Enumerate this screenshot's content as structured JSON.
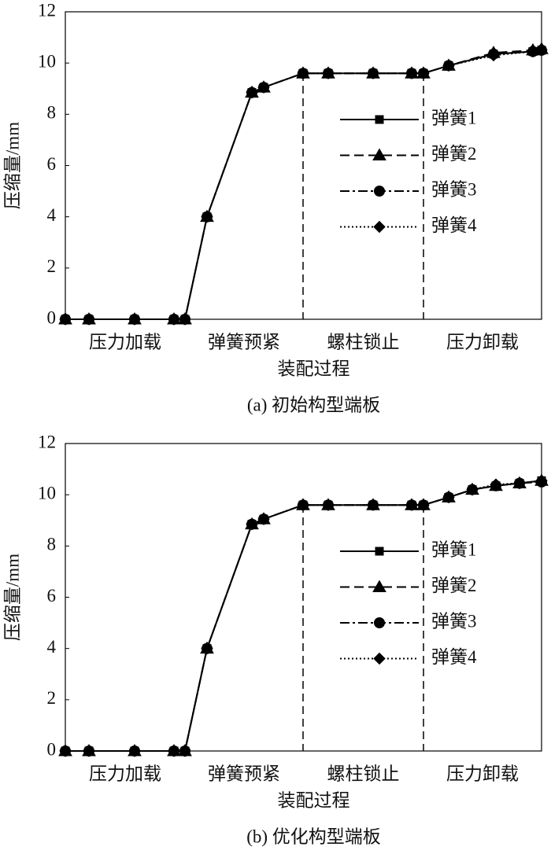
{
  "chart_data": [
    {
      "type": "line",
      "title": "(a)  初始构型端板",
      "xlabel": "装配过程",
      "ylabel": "压缩量/mm",
      "stages": [
        "压力加载",
        "弹簧预紧",
        "螺柱锁止",
        "压力卸载"
      ],
      "dividers": [
        12.08,
        18.2
      ],
      "xlim": [
        0,
        24.2
      ],
      "ylim": [
        0,
        12
      ],
      "yticks": [
        0,
        2,
        4,
        6,
        8,
        10,
        12
      ],
      "x": [
        0,
        1.2,
        3.52,
        5.52,
        6.08,
        7.2,
        9.48,
        10.08,
        12.08,
        13.36,
        15.64,
        17.6,
        18.2,
        19.48,
        21.76,
        23.76,
        24.2
      ],
      "series": [
        {
          "name": "弹簧1",
          "color": "#000000",
          "marker": "square",
          "dash": "solid",
          "values": [
            0,
            0,
            0,
            0,
            0,
            4,
            8.85,
            9.05,
            9.6,
            9.6,
            9.6,
            9.6,
            9.6,
            9.9,
            10.35,
            10.45,
            10.5
          ]
        },
        {
          "name": "弹簧2",
          "color": "#000000",
          "marker": "triangle",
          "dash": "dashed",
          "values": [
            0,
            0,
            0,
            0,
            0,
            4,
            8.85,
            9.05,
            9.6,
            9.6,
            9.6,
            9.6,
            9.6,
            9.9,
            10.4,
            10.5,
            10.55
          ]
        },
        {
          "name": "弹簧3",
          "color": "#000000",
          "marker": "circle",
          "dash": "dashdot",
          "values": [
            0,
            0,
            0,
            0,
            0,
            4,
            8.85,
            9.05,
            9.6,
            9.6,
            9.6,
            9.6,
            9.6,
            9.9,
            10.35,
            10.45,
            10.5
          ]
        },
        {
          "name": "弹簧4",
          "color": "#000000",
          "marker": "diamond",
          "dash": "dotted",
          "values": [
            0,
            0,
            0,
            0,
            0,
            4,
            8.85,
            9.05,
            9.6,
            9.6,
            9.6,
            9.6,
            9.6,
            9.9,
            10.3,
            10.45,
            10.5
          ]
        }
      ]
    },
    {
      "type": "line",
      "title": "(b)  优化构型端板",
      "xlabel": "装配过程",
      "ylabel": "压缩量/mm",
      "stages": [
        "压力加载",
        "弹簧预紧",
        "螺柱锁止",
        "压力卸载"
      ],
      "dividers": [
        12.08,
        18.2
      ],
      "xlim": [
        0,
        24.2
      ],
      "ylim": [
        0,
        12
      ],
      "yticks": [
        0,
        2,
        4,
        6,
        8,
        10,
        12
      ],
      "x": [
        0,
        1.2,
        3.52,
        5.52,
        6.08,
        7.2,
        9.48,
        10.08,
        12.08,
        13.36,
        15.64,
        17.6,
        18.2,
        19.48,
        20.68,
        21.88,
        23.08,
        24.2
      ],
      "series": [
        {
          "name": "弹簧1",
          "color": "#000000",
          "marker": "square",
          "dash": "solid",
          "values": [
            0,
            0,
            0,
            0,
            0,
            4,
            8.85,
            9.05,
            9.6,
            9.6,
            9.6,
            9.6,
            9.6,
            9.9,
            10.2,
            10.35,
            10.45,
            10.55
          ]
        },
        {
          "name": "弹簧2",
          "color": "#000000",
          "marker": "triangle",
          "dash": "dashed",
          "values": [
            0,
            0,
            0,
            0,
            0,
            4,
            8.85,
            9.05,
            9.6,
            9.6,
            9.6,
            9.6,
            9.6,
            9.9,
            10.2,
            10.35,
            10.45,
            10.55
          ]
        },
        {
          "name": "弹簧3",
          "color": "#000000",
          "marker": "circle",
          "dash": "dashdot",
          "values": [
            0,
            0,
            0,
            0,
            0,
            4,
            8.85,
            9.05,
            9.6,
            9.6,
            9.6,
            9.6,
            9.6,
            9.9,
            10.2,
            10.35,
            10.45,
            10.5
          ]
        },
        {
          "name": "弹簧4",
          "color": "#000000",
          "marker": "diamond",
          "dash": "dotted",
          "values": [
            0,
            0,
            0,
            0,
            0,
            4,
            8.85,
            9.05,
            9.6,
            9.6,
            9.6,
            9.6,
            9.6,
            9.9,
            10.2,
            10.4,
            10.45,
            10.55
          ]
        }
      ]
    }
  ]
}
